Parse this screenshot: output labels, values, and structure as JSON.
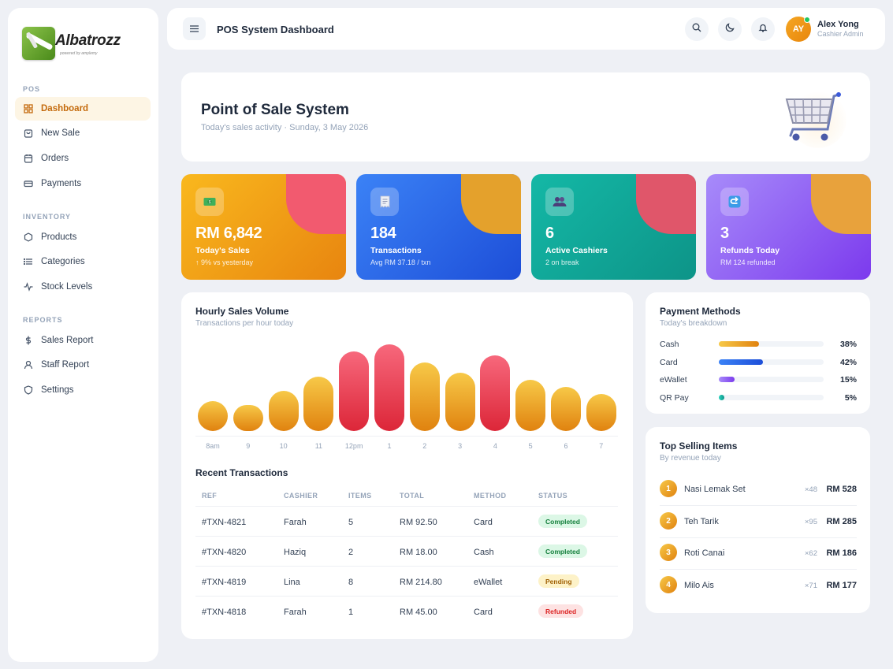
{
  "brand": {
    "name": "Albatrozz",
    "tagline": "powered by amplemy"
  },
  "sidebar": {
    "sections": [
      {
        "label": "POS",
        "items": [
          {
            "label": "Dashboard",
            "icon": "grid-icon",
            "active": true
          },
          {
            "label": "New Sale",
            "icon": "bag-icon"
          },
          {
            "label": "Orders",
            "icon": "calendar-icon"
          },
          {
            "label": "Payments",
            "icon": "card-icon"
          }
        ]
      },
      {
        "label": "INVENTORY",
        "items": [
          {
            "label": "Products",
            "icon": "box-icon"
          },
          {
            "label": "Categories",
            "icon": "list-icon"
          },
          {
            "label": "Stock Levels",
            "icon": "activity-icon"
          }
        ]
      },
      {
        "label": "REPORTS",
        "items": [
          {
            "label": "Sales Report",
            "icon": "dollar-icon"
          },
          {
            "label": "Staff Report",
            "icon": "user-icon"
          },
          {
            "label": "Settings",
            "icon": "shield-icon"
          }
        ]
      }
    ]
  },
  "header": {
    "title": "POS System Dashboard",
    "user": {
      "initials": "AY",
      "name": "Alex Yong",
      "role": "Cashier Admin"
    }
  },
  "hero": {
    "title": "Point of Sale System",
    "subtitle": "Today's sales activity · Sunday, 3 May 2026"
  },
  "stats": [
    {
      "value": "RM 6,842",
      "label": "Today's Sales",
      "sub": "↑ 9% vs yesterday",
      "icon": "cash-icon",
      "bg": [
        "#f9b81e",
        "#e8850f"
      ],
      "blob": "#f25a6f"
    },
    {
      "value": "184",
      "label": "Transactions",
      "sub": "Avg RM 37.18 / txn",
      "icon": "receipt-icon",
      "bg": [
        "#3b82f6",
        "#1d4ed8"
      ],
      "blob": "#e4a12c"
    },
    {
      "value": "6",
      "label": "Active Cashiers",
      "sub": "2 on break",
      "icon": "users-icon",
      "bg": [
        "#14b8a6",
        "#0d9488"
      ],
      "blob": "#e0566a"
    },
    {
      "value": "3",
      "label": "Refunds Today",
      "sub": "RM 124 refunded",
      "icon": "refund-icon",
      "bg": [
        "#a78bfa",
        "#7c3aed"
      ],
      "blob": "#e8a23c"
    }
  ],
  "chart": {
    "title": "Hourly Sales Volume",
    "subtitle": "Transactions per hour today"
  },
  "chart_data": {
    "type": "bar",
    "title": "Hourly Sales Volume",
    "categories": [
      "8am",
      "9",
      "10",
      "11",
      "12pm",
      "1",
      "2",
      "3",
      "4",
      "5",
      "6",
      "7"
    ],
    "values": [
      4,
      3,
      7,
      11,
      18,
      20,
      15,
      12,
      17,
      10,
      8,
      6
    ],
    "highlight": [
      false,
      false,
      false,
      false,
      true,
      true,
      false,
      false,
      true,
      false,
      false,
      false
    ],
    "colors": {
      "normal": "#f0a524",
      "peak": "#ea3b4f"
    }
  },
  "transactions": {
    "title": "Recent Transactions",
    "columns": [
      "REF",
      "CASHIER",
      "ITEMS",
      "TOTAL",
      "METHOD",
      "STATUS"
    ],
    "rows": [
      {
        "ref": "#TXN-4821",
        "cashier": "Farah",
        "items": "5",
        "total": "RM 92.50",
        "method": "Card",
        "status": "Completed"
      },
      {
        "ref": "#TXN-4820",
        "cashier": "Haziq",
        "items": "2",
        "total": "RM 18.00",
        "method": "Cash",
        "status": "Completed"
      },
      {
        "ref": "#TXN-4819",
        "cashier": "Lina",
        "items": "8",
        "total": "RM 214.80",
        "method": "eWallet",
        "status": "Pending"
      },
      {
        "ref": "#TXN-4818",
        "cashier": "Farah",
        "items": "1",
        "total": "RM 45.00",
        "method": "Card",
        "status": "Refunded"
      }
    ]
  },
  "payment_methods": {
    "title": "Payment Methods",
    "subtitle": "Today's breakdown",
    "items": [
      {
        "label": "Cash",
        "pct": "38%",
        "value": 38,
        "color": [
          "#f7c948",
          "#e0820f"
        ]
      },
      {
        "label": "Card",
        "pct": "42%",
        "value": 42,
        "color": [
          "#3b82f6",
          "#1d4ed8"
        ]
      },
      {
        "label": "eWallet",
        "pct": "15%",
        "value": 15,
        "color": [
          "#a78bfa",
          "#7c3aed"
        ]
      },
      {
        "label": "QR Pay",
        "pct": "5%",
        "value": 5,
        "color": [
          "#2dd4bf",
          "#0d9488"
        ]
      }
    ]
  },
  "top_selling": {
    "title": "Top Selling Items",
    "subtitle": "By revenue today",
    "items": [
      {
        "rank": "1",
        "name": "Nasi Lemak Set",
        "qty": "×48",
        "amount": "RM 528"
      },
      {
        "rank": "2",
        "name": "Teh Tarik",
        "qty": "×95",
        "amount": "RM 285"
      },
      {
        "rank": "3",
        "name": "Roti Canai",
        "qty": "×62",
        "amount": "RM 186"
      },
      {
        "rank": "4",
        "name": "Milo Ais",
        "qty": "×71",
        "amount": "RM 177"
      }
    ]
  }
}
